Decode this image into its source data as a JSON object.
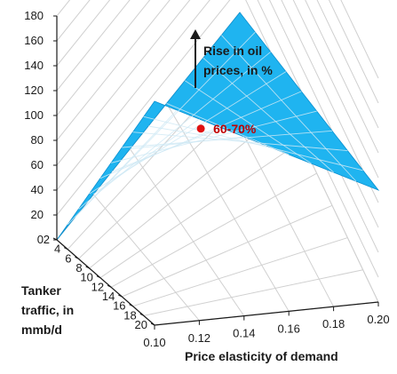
{
  "chart_data": {
    "type": "surface3d",
    "title": "",
    "x_axis": {
      "label": "Price elasticity of demand",
      "ticks": [
        "0.10",
        "0.12",
        "0.14",
        "0.16",
        "0.18",
        "0.20"
      ],
      "range": [
        0.1,
        0.2
      ]
    },
    "y_axis": {
      "label": [
        "Tanker",
        "traffic, in",
        "mmb/d"
      ],
      "ticks": [
        "2",
        "4",
        "6",
        "8",
        "10",
        "12",
        "14",
        "16",
        "18",
        "20"
      ],
      "range": [
        2,
        20
      ]
    },
    "z_axis": {
      "label": [
        "Rise in oil",
        "prices, in %"
      ],
      "ticks": [
        "0",
        "20",
        "40",
        "60",
        "80",
        "100",
        "120",
        "140",
        "160",
        "180"
      ],
      "range": [
        0,
        180
      ]
    },
    "surface": {
      "corners": [
        {
          "x": 0.1,
          "y": 2,
          "z": 0
        },
        {
          "x": 0.2,
          "y": 2,
          "z": 0
        },
        {
          "x": 0.1,
          "y": 20,
          "z": 180
        },
        {
          "x": 0.2,
          "y": 20,
          "z": 90
        }
      ],
      "color": "#1fb4f0"
    },
    "annotation": {
      "label": "60-70%",
      "point": {
        "x": 0.15,
        "y": 10,
        "z": 65
      },
      "color": "#e01010"
    },
    "grid": true
  }
}
